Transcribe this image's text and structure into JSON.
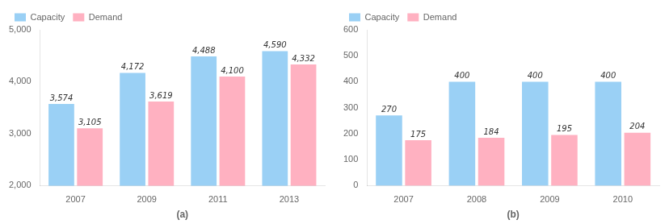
{
  "chart_data": [
    {
      "type": "bar",
      "x_label": "(a)",
      "categories": [
        "2007",
        "2009",
        "2011",
        "2013"
      ],
      "series": [
        {
          "name": "Capacity",
          "values": [
            3574,
            4172,
            4488,
            4590
          ],
          "value_labels": [
            "3,574",
            "4,172",
            "4,488",
            "4,590"
          ]
        },
        {
          "name": "Demand",
          "values": [
            3105,
            3619,
            4100,
            4332
          ],
          "value_labels": [
            "3,105",
            "3,619",
            "4,100",
            "4,332"
          ]
        }
      ],
      "ylim": [
        2000,
        5000
      ],
      "yticks": [
        {
          "value": 2000,
          "label": "2,000"
        },
        {
          "value": 3000,
          "label": "3,000"
        },
        {
          "value": 4000,
          "label": "4,000"
        },
        {
          "value": 5000,
          "label": "5,000"
        }
      ],
      "grid": false,
      "legend": "upper left",
      "data_labels": true
    },
    {
      "type": "bar",
      "x_label": "(b)",
      "categories": [
        "2007",
        "2008",
        "2009",
        "2010"
      ],
      "series": [
        {
          "name": "Capacity",
          "values": [
            270,
            400,
            400,
            400
          ]
        },
        {
          "name": "Demand",
          "values": [
            175,
            184,
            195,
            204
          ]
        }
      ],
      "ylim": [
        0,
        600
      ],
      "yticks": [
        0,
        100,
        200,
        300,
        400,
        500,
        600
      ],
      "grid": false,
      "legend": "upper left",
      "data_labels": true
    }
  ]
}
